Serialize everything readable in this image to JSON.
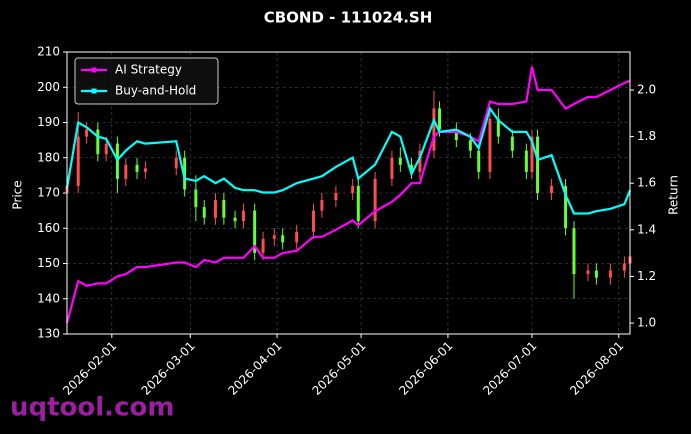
{
  "chart_data": {
    "type": "candlestick",
    "title": "CBOND - 111024.SH",
    "y_label": "Price",
    "y2_label": "Return",
    "watermark": "uqtool.com",
    "x": [
      "2026-01-16",
      "2026-01-20",
      "2026-01-23",
      "2026-01-27",
      "2026-01-30",
      "2026-02-03",
      "2026-02-06",
      "2026-02-10",
      "2026-02-13",
      "2026-02-24",
      "2026-02-27",
      "2026-03-03",
      "2026-03-06",
      "2026-03-10",
      "2026-03-13",
      "2026-03-17",
      "2026-03-20",
      "2026-03-24",
      "2026-03-27",
      "2026-03-31",
      "2026-04-03",
      "2026-04-08",
      "2026-04-14",
      "2026-04-17",
      "2026-04-22",
      "2026-04-28",
      "2026-04-30",
      "2026-05-06",
      "2026-05-12",
      "2026-05-15",
      "2026-05-19",
      "2026-05-22",
      "2026-05-27",
      "2026-05-29",
      "2026-06-04",
      "2026-06-09",
      "2026-06-12",
      "2026-06-16",
      "2026-06-19",
      "2026-06-24",
      "2026-06-29",
      "2026-07-01",
      "2026-07-03",
      "2026-07-08",
      "2026-07-13",
      "2026-07-16",
      "2026-07-21",
      "2026-07-24",
      "2026-07-29",
      "2026-08-03",
      "2026-08-05"
    ],
    "open": [
      170,
      172,
      186,
      188,
      181,
      184,
      174,
      178,
      176,
      177,
      180,
      171,
      166,
      163,
      168,
      163,
      162,
      165,
      153,
      157,
      158,
      156,
      159,
      165,
      168,
      170,
      172,
      162,
      174,
      180,
      178,
      176,
      182,
      194,
      188,
      185,
      182,
      176,
      191,
      186,
      182,
      176,
      186,
      170,
      172,
      160,
      147,
      148,
      146,
      148,
      150
    ],
    "high": [
      174,
      193,
      190,
      190,
      186,
      186,
      180,
      180,
      179,
      182,
      182,
      175,
      168,
      170,
      170,
      165,
      167,
      167,
      159,
      160,
      160,
      161,
      167,
      170,
      172,
      174,
      174,
      176,
      182,
      183,
      180,
      184,
      199,
      196,
      190,
      187,
      184,
      193,
      194,
      188,
      184,
      188,
      188,
      174,
      174,
      162,
      150,
      150,
      150,
      152,
      154
    ],
    "low": [
      168,
      170,
      184,
      179,
      179,
      170,
      172,
      174,
      174,
      175,
      169,
      162,
      161,
      161,
      161,
      160,
      160,
      151,
      151,
      155,
      154,
      154,
      157,
      163,
      166,
      168,
      160,
      160,
      172,
      176,
      174,
      174,
      180,
      186,
      183,
      180,
      174,
      174,
      184,
      180,
      174,
      174,
      168,
      168,
      158,
      140,
      145,
      144,
      144,
      146,
      148
    ],
    "close": [
      172,
      186,
      188,
      181,
      184,
      174,
      178,
      176,
      177,
      180,
      171,
      166,
      163,
      168,
      163,
      162,
      165,
      153,
      157,
      158,
      156,
      159,
      165,
      168,
      170,
      172,
      162,
      174,
      180,
      178,
      176,
      182,
      194,
      188,
      185,
      182,
      176,
      191,
      186,
      182,
      176,
      186,
      170,
      172,
      160,
      147,
      148,
      146,
      148,
      150,
      152
    ],
    "up_color": "#ff4d4d",
    "down_color": "#66ff33",
    "series": [
      {
        "name": "AI Strategy",
        "color": "#ff00ff",
        "axis": "y2",
        "values": [
          1.0,
          1.18,
          1.16,
          1.17,
          1.17,
          1.2,
          1.21,
          1.24,
          1.24,
          1.26,
          1.26,
          1.24,
          1.27,
          1.26,
          1.28,
          1.28,
          1.28,
          1.33,
          1.28,
          1.28,
          1.3,
          1.31,
          1.37,
          1.37,
          1.4,
          1.44,
          1.42,
          1.48,
          1.52,
          1.55,
          1.6,
          1.6,
          1.8,
          1.82,
          1.82,
          1.8,
          1.78,
          1.95,
          1.94,
          1.94,
          1.95,
          2.1,
          2.0,
          2.0,
          1.92,
          1.94,
          1.97,
          1.97,
          2.0,
          2.03,
          2.04
        ]
      },
      {
        "name": "Buy-and-Hold",
        "color": "#00ffff",
        "axis": "y2",
        "values": [
          1.58,
          1.86,
          1.84,
          1.8,
          1.79,
          1.7,
          1.74,
          1.78,
          1.77,
          1.78,
          1.62,
          1.61,
          1.63,
          1.6,
          1.62,
          1.58,
          1.57,
          1.57,
          1.56,
          1.56,
          1.57,
          1.6,
          1.62,
          1.63,
          1.67,
          1.71,
          1.62,
          1.68,
          1.82,
          1.8,
          1.64,
          1.71,
          1.87,
          1.82,
          1.83,
          1.8,
          1.75,
          1.92,
          1.87,
          1.82,
          1.82,
          1.78,
          1.7,
          1.72,
          1.55,
          1.47,
          1.47,
          1.48,
          1.49,
          1.51,
          1.57
        ]
      }
    ],
    "xlim": [
      "2026-01-16",
      "2026-08-05"
    ],
    "xticks": [
      "2026-02-01",
      "2026-03-01",
      "2026-04-01",
      "2026-05-01",
      "2026-06-01",
      "2026-07-01",
      "2026-08-01"
    ],
    "ylim": [
      130,
      210
    ],
    "yticks": [
      130,
      140,
      150,
      160,
      170,
      180,
      190,
      200,
      210
    ],
    "y2lim": [
      0.953,
      2.163
    ],
    "y2ticks": [
      {
        "value": 1.0,
        "label": "1.0"
      },
      {
        "value": 1.2,
        "label": "1.2"
      },
      {
        "value": 1.4,
        "label": "1.4"
      },
      {
        "value": 1.6,
        "label": "1.6"
      },
      {
        "value": 1.8,
        "label": "1.8"
      },
      {
        "value": 2.0,
        "label": "2.0"
      }
    ],
    "grid": true,
    "legend": "upper left"
  }
}
